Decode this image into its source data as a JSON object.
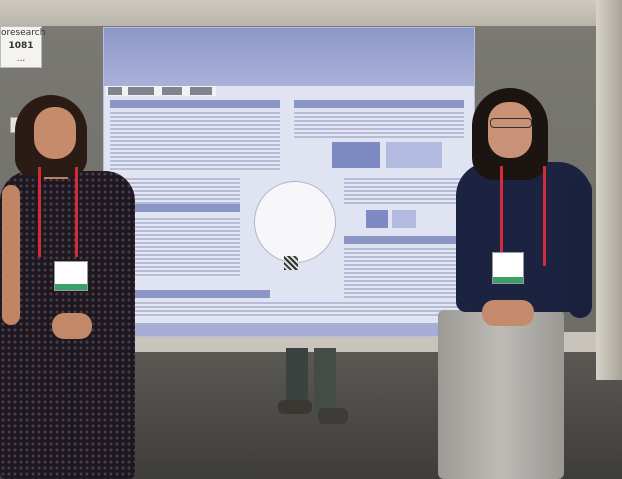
{
  "board_label": {
    "line1": "oresearch",
    "line2": "1081",
    "line3": "..."
  },
  "poster": {
    "title": ""
  }
}
